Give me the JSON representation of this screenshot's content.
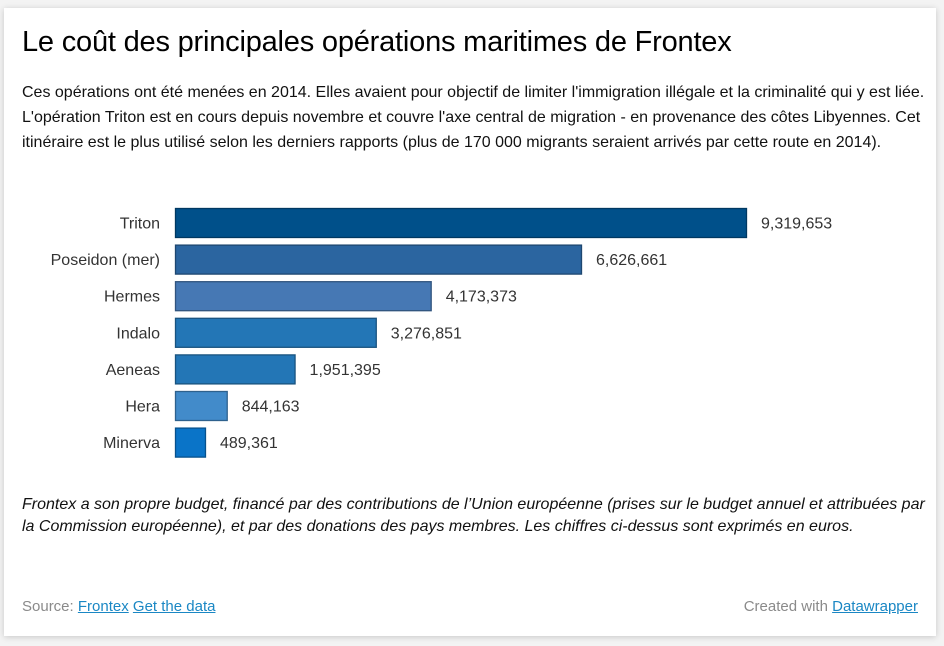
{
  "title": "Le coût des principales opérations maritimes de Frontex",
  "intro": "Ces opérations ont été menées en 2014. Elles avaient pour objectif de limiter l'immigration illégale et la criminalité qui y est liée. L'opération Triton est en cours depuis novembre et couvre l'axe central de migration - en provenance des côtes Libyennes. Cet itinéraire est le plus utilisé selon les derniers rapports (plus de 170 000 migrants seraient arrivés par cette route en 2014).",
  "chart_data": {
    "type": "bar",
    "orientation": "horizontal",
    "title": "",
    "xlabel": "",
    "ylabel": "",
    "categories": [
      "Triton",
      "Poseidon (mer)",
      "Hermes",
      "Indalo",
      "Aeneas",
      "Hera",
      "Minerva"
    ],
    "values": [
      9319653,
      6626661,
      4173373,
      3276851,
      1951395,
      844163,
      489361
    ],
    "value_labels": [
      "9,319,653",
      "6,626,661",
      "4,173,373",
      "3,276,851",
      "1,951,395",
      "844,163",
      "489,361"
    ],
    "colors": [
      "#00508a",
      "#2b65a0",
      "#4678b4",
      "#2376b6",
      "#2376b6",
      "#428bca",
      "#0a74c8"
    ],
    "xlim": [
      0,
      9319653
    ],
    "grid": false,
    "legend": "none"
  },
  "notes": "Frontex a son propre budget, financé par des contributions de l’Union européenne (prises sur le budget annuel et attribuées par la Commission européenne), et par des donations des pays membres. Les chiffres ci-dessus sont exprimés en euros.",
  "footer": {
    "source_label": "Source:",
    "source_link": "Frontex",
    "data_link": "Get the data",
    "created_label": "Created with",
    "created_link": "Datawrapper"
  }
}
